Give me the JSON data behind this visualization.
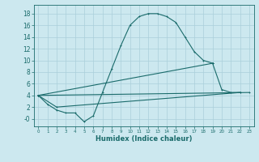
{
  "xlabel": "Humidex (Indice chaleur)",
  "bg_color": "#cce8ef",
  "grid_color": "#aacfda",
  "line_color": "#1a6b6b",
  "xlim": [
    -0.5,
    23.5
  ],
  "ylim": [
    -1.3,
    19.5
  ],
  "xticks": [
    0,
    1,
    2,
    3,
    4,
    5,
    6,
    7,
    8,
    9,
    10,
    11,
    12,
    13,
    14,
    15,
    16,
    17,
    18,
    19,
    20,
    21,
    22,
    23
  ],
  "yticks": [
    0,
    2,
    4,
    6,
    8,
    10,
    12,
    14,
    16,
    18
  ],
  "ytick_labels": [
    "-0",
    "2",
    "4",
    "6",
    "8",
    "10",
    "12",
    "14",
    "16",
    "18"
  ],
  "lines": [
    {
      "x": [
        0,
        1,
        2,
        3,
        4,
        5,
        6,
        7,
        8,
        9,
        10,
        11,
        12,
        13,
        14,
        15,
        16,
        17,
        18,
        19
      ],
      "y": [
        4.0,
        2.5,
        1.5,
        1.0,
        1.0,
        -0.5,
        0.5,
        4.5,
        8.5,
        12.5,
        16.0,
        17.5,
        18.0,
        18.0,
        17.5,
        16.5,
        14.0,
        11.5,
        10.0,
        9.5
      ]
    },
    {
      "x": [
        19,
        20,
        21,
        22
      ],
      "y": [
        9.5,
        5.0,
        4.5,
        4.5
      ]
    },
    {
      "x": [
        0,
        19
      ],
      "y": [
        4.0,
        9.5
      ]
    },
    {
      "x": [
        0,
        2,
        22
      ],
      "y": [
        4.0,
        2.0,
        4.5
      ]
    },
    {
      "x": [
        0,
        23
      ],
      "y": [
        4.0,
        4.5
      ]
    }
  ],
  "xlabel_fontsize": 6,
  "xlabel_fontweight": "bold",
  "xtick_fontsize": 4.0,
  "ytick_fontsize": 5.5,
  "line_width": 0.8,
  "marker_size": 2.0,
  "marker_ew": 0.7
}
